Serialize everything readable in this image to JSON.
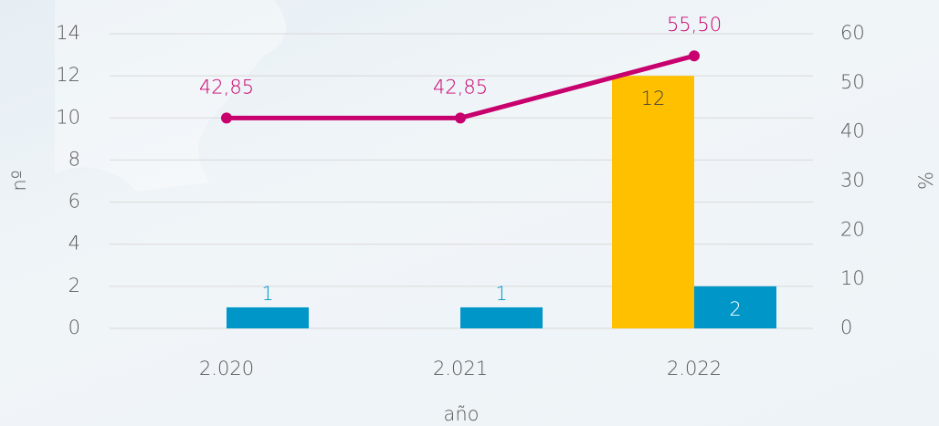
{
  "chart_data": {
    "type": "bar-line",
    "categories": [
      "2.020",
      "2.021",
      "2.022"
    ],
    "series": [
      {
        "type": "bar",
        "color": "#ffc000",
        "values": [
          null,
          null,
          12
        ]
      },
      {
        "type": "bar",
        "color": "#0096c8",
        "values": [
          1,
          1,
          2
        ]
      },
      {
        "type": "line",
        "axis": "y2",
        "color": "#c8006e",
        "values": [
          42.85,
          42.85,
          55.5
        ],
        "value_labels": [
          "42,85",
          "42,85",
          "55,50"
        ]
      }
    ],
    "ylim": [
      0,
      14
    ],
    "yticks": [
      0,
      2,
      4,
      6,
      8,
      10,
      12,
      14
    ],
    "y2lim": [
      0,
      60
    ],
    "y2ticks": [
      0,
      10,
      20,
      30,
      40,
      50,
      60
    ],
    "ylabel": "nº",
    "y2label": "%",
    "xlabel": "año",
    "grid": true
  }
}
